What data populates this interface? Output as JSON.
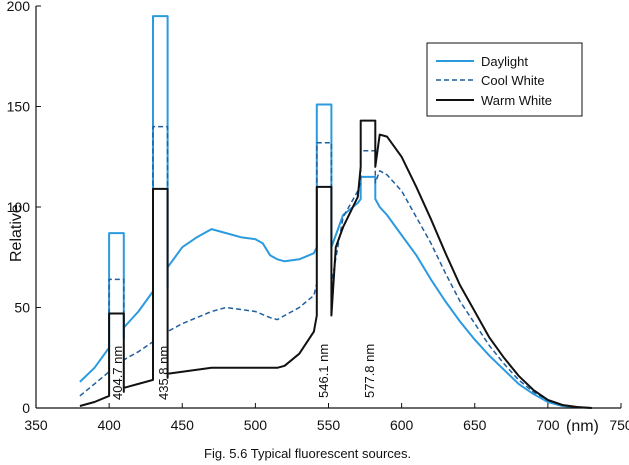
{
  "chart_data": {
    "type": "line",
    "title": "",
    "caption": "Fig. 5.6  Typical fluorescent sources.",
    "xlabel": "(nm)",
    "ylabel": "Relative",
    "xlim": [
      350,
      750
    ],
    "ylim": [
      0,
      200
    ],
    "x_ticks": [
      350,
      400,
      450,
      500,
      550,
      600,
      650,
      700,
      750
    ],
    "y_ticks": [
      0,
      50,
      100,
      150,
      200
    ],
    "grid": false,
    "legend": {
      "position": "top-right",
      "entries": [
        {
          "name": "Daylight",
          "color": "#2b9be0",
          "style": "solid"
        },
        {
          "name": "Cool White",
          "color": "#1f5f9e",
          "style": "dashed"
        },
        {
          "name": "Warm White",
          "color": "#111111",
          "style": "solid"
        }
      ]
    },
    "annotations": [
      "404.7 nm",
      "435.8 nm",
      "546.1 nm",
      "577.8 nm"
    ],
    "series": [
      {
        "name": "Daylight",
        "color": "#2b9be0",
        "style": "solid",
        "points": [
          [
            380,
            13
          ],
          [
            390,
            20
          ],
          [
            400,
            30
          ],
          [
            405,
            35
          ],
          [
            410,
            40
          ],
          [
            420,
            48
          ],
          [
            430,
            58
          ],
          [
            440,
            70
          ],
          [
            450,
            80
          ],
          [
            460,
            85
          ],
          [
            470,
            89
          ],
          [
            480,
            87
          ],
          [
            490,
            85
          ],
          [
            500,
            84
          ],
          [
            505,
            82
          ],
          [
            510,
            76
          ],
          [
            515,
            74
          ],
          [
            520,
            73
          ],
          [
            530,
            74
          ],
          [
            540,
            77
          ],
          [
            545,
            80
          ],
          [
            550,
            88
          ],
          [
            560,
            96
          ],
          [
            570,
            102
          ],
          [
            575,
            104
          ],
          [
            580,
            104
          ],
          [
            585,
            100
          ],
          [
            590,
            96
          ],
          [
            600,
            86
          ],
          [
            610,
            76
          ],
          [
            620,
            64
          ],
          [
            630,
            53
          ],
          [
            640,
            43
          ],
          [
            650,
            34
          ],
          [
            660,
            26
          ],
          [
            670,
            19
          ],
          [
            680,
            12
          ],
          [
            690,
            7
          ],
          [
            700,
            3
          ],
          [
            710,
            1
          ],
          [
            720,
            0.4
          ],
          [
            730,
            0
          ]
        ],
        "spikes": [
          {
            "x_start": 400,
            "x_end": 410,
            "base": 35,
            "peak": 87
          },
          {
            "x_start": 430,
            "x_end": 440,
            "base": 60,
            "peak": 195
          },
          {
            "x_start": 542,
            "x_end": 552,
            "base": 80,
            "peak": 151
          },
          {
            "x_start": 572,
            "x_end": 582,
            "base": 104,
            "peak": 115
          }
        ]
      },
      {
        "name": "Cool White",
        "color": "#1f5f9e",
        "style": "dashed",
        "points": [
          [
            380,
            6
          ],
          [
            390,
            12
          ],
          [
            400,
            18
          ],
          [
            405,
            22
          ],
          [
            410,
            24
          ],
          [
            420,
            28
          ],
          [
            430,
            33
          ],
          [
            440,
            38
          ],
          [
            450,
            42
          ],
          [
            460,
            45
          ],
          [
            470,
            48
          ],
          [
            480,
            50
          ],
          [
            490,
            49
          ],
          [
            500,
            48
          ],
          [
            510,
            45
          ],
          [
            515,
            44
          ],
          [
            520,
            46
          ],
          [
            530,
            50
          ],
          [
            540,
            56
          ],
          [
            545,
            62
          ],
          [
            550,
            76
          ],
          [
            560,
            95
          ],
          [
            570,
            108
          ],
          [
            575,
            112
          ],
          [
            580,
            118
          ],
          [
            585,
            118
          ],
          [
            590,
            116
          ],
          [
            600,
            108
          ],
          [
            610,
            95
          ],
          [
            620,
            82
          ],
          [
            630,
            67
          ],
          [
            640,
            53
          ],
          [
            650,
            42
          ],
          [
            660,
            31
          ],
          [
            670,
            22
          ],
          [
            680,
            14
          ],
          [
            690,
            8
          ],
          [
            700,
            4
          ],
          [
            710,
            1.5
          ],
          [
            720,
            0.5
          ],
          [
            730,
            0
          ]
        ],
        "spikes": [
          {
            "x_start": 400,
            "x_end": 410,
            "base": 22,
            "peak": 64
          },
          {
            "x_start": 430,
            "x_end": 440,
            "base": 36,
            "peak": 140
          },
          {
            "x_start": 542,
            "x_end": 552,
            "base": 62,
            "peak": 132
          },
          {
            "x_start": 572,
            "x_end": 582,
            "base": 112,
            "peak": 128
          }
        ]
      },
      {
        "name": "Warm White",
        "color": "#111111",
        "style": "solid",
        "points": [
          [
            380,
            1
          ],
          [
            390,
            3
          ],
          [
            400,
            6
          ],
          [
            405,
            8
          ],
          [
            410,
            10
          ],
          [
            420,
            12
          ],
          [
            430,
            14
          ],
          [
            440,
            17
          ],
          [
            450,
            18
          ],
          [
            460,
            19
          ],
          [
            470,
            20
          ],
          [
            480,
            20
          ],
          [
            490,
            20
          ],
          [
            500,
            20
          ],
          [
            510,
            20
          ],
          [
            515,
            20
          ],
          [
            520,
            21
          ],
          [
            530,
            27
          ],
          [
            540,
            38
          ],
          [
            545,
            46
          ],
          [
            550,
            70
          ],
          [
            555,
            80
          ],
          [
            560,
            90
          ],
          [
            570,
            105
          ],
          [
            575,
            120
          ],
          [
            580,
            132
          ],
          [
            585,
            136
          ],
          [
            590,
            135
          ],
          [
            600,
            125
          ],
          [
            610,
            110
          ],
          [
            620,
            94
          ],
          [
            630,
            77
          ],
          [
            640,
            61
          ],
          [
            650,
            48
          ],
          [
            660,
            35
          ],
          [
            670,
            25
          ],
          [
            680,
            16
          ],
          [
            690,
            9
          ],
          [
            700,
            4
          ],
          [
            710,
            1.5
          ],
          [
            720,
            0.5
          ],
          [
            730,
            0
          ]
        ],
        "spikes": [
          {
            "x_start": 400,
            "x_end": 410,
            "base": 8,
            "peak": 47
          },
          {
            "x_start": 430,
            "x_end": 440,
            "base": 15,
            "peak": 109
          },
          {
            "x_start": 542,
            "x_end": 552,
            "base": 46,
            "peak": 110
          },
          {
            "x_start": 572,
            "x_end": 582,
            "base": 120,
            "peak": 143
          }
        ]
      }
    ]
  }
}
